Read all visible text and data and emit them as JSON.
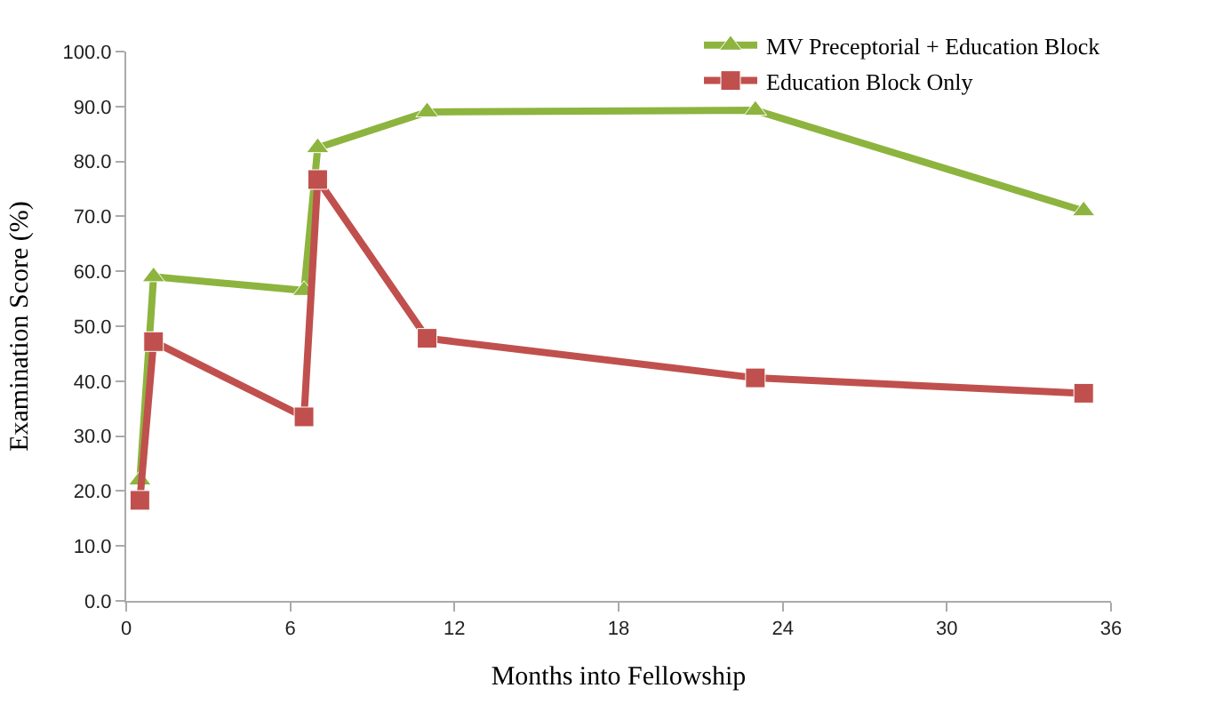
{
  "chart_data": {
    "type": "line",
    "xlabel": "Months into Fellowship",
    "ylabel": "Examination Score (%)",
    "xlim": [
      0,
      36
    ],
    "xticks": [
      0,
      6,
      12,
      18,
      24,
      30,
      36
    ],
    "ylim": [
      0,
      100
    ],
    "yticks": [
      {
        "value": 0,
        "label": "0.0"
      },
      {
        "value": 10,
        "label": "10.0"
      },
      {
        "value": 20,
        "label": "20.0"
      },
      {
        "value": 30,
        "label": "30.0"
      },
      {
        "value": 40,
        "label": "40.0"
      },
      {
        "value": 50,
        "label": "50.0"
      },
      {
        "value": 60,
        "label": "60.0"
      },
      {
        "value": 70,
        "label": "70.0"
      },
      {
        "value": 80,
        "label": "80.0"
      },
      {
        "value": 90,
        "label": "90.0"
      },
      {
        "value": 100,
        "label": "100.0"
      }
    ],
    "legend": "top right",
    "line_style": "solid",
    "series": [
      {
        "name": "MV Preceptorial + Education Block",
        "color": "#8db43e",
        "marker": "triangle",
        "x": [
          0.5,
          1,
          6.5,
          7,
          11,
          23,
          35
        ],
        "values": [
          22,
          59,
          56.5,
          82.5,
          89,
          89.3,
          71
        ]
      },
      {
        "name": "Education Block Only",
        "color": "#c0504d",
        "marker": "square",
        "x": [
          0.5,
          1,
          6.5,
          7,
          11,
          23,
          35
        ],
        "values": [
          18.3,
          47.2,
          33.5,
          76.7,
          47.8,
          40.6,
          37.8
        ]
      }
    ]
  }
}
